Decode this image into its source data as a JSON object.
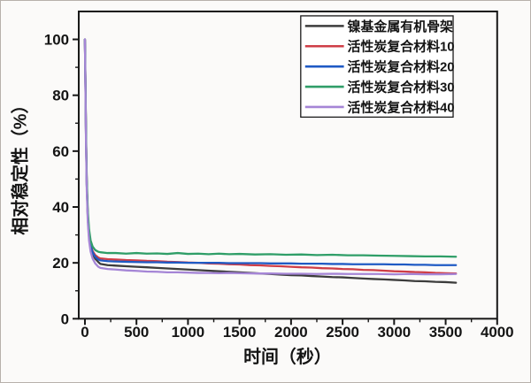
{
  "figure": {
    "background": "#fbfaf9",
    "border_color": "#b7b1ab",
    "axis_color": "#161616",
    "text_color": "#141414"
  },
  "chart_data": {
    "type": "line",
    "title": "",
    "xlabel": "时间（秒）",
    "ylabel": "相对稳定性（%）",
    "xlim": [
      -60,
      4000
    ],
    "ylim": [
      0,
      110
    ],
    "x_major_ticks": [
      0,
      500,
      1000,
      1500,
      2000,
      2500,
      3000,
      3500,
      4000
    ],
    "x_minor_ticks": [
      250,
      750,
      1250,
      1750,
      2250,
      2750,
      3250,
      3750
    ],
    "y_major_ticks": [
      0,
      20,
      40,
      60,
      80,
      100
    ],
    "y_minor_ticks": [
      10,
      30,
      50,
      70,
      90
    ],
    "grid": false,
    "legend_position": "top-right-inside",
    "series": [
      {
        "name": "镍基金属有机骨架",
        "color": "#3c3c3c",
        "points": [
          [
            0,
            100
          ],
          [
            5,
            84
          ],
          [
            10,
            66
          ],
          [
            18,
            48
          ],
          [
            28,
            36
          ],
          [
            40,
            29.5
          ],
          [
            55,
            25.5
          ],
          [
            75,
            23
          ],
          [
            100,
            21.5
          ],
          [
            130,
            20.3
          ],
          [
            150,
            19.6
          ],
          [
            220,
            19.2
          ],
          [
            300,
            19.0
          ],
          [
            400,
            18.8
          ],
          [
            500,
            18.6
          ],
          [
            600,
            18.4
          ],
          [
            700,
            18.2
          ],
          [
            800,
            18.0
          ],
          [
            900,
            17.8
          ],
          [
            1000,
            17.6
          ],
          [
            1100,
            17.4
          ],
          [
            1200,
            17.2
          ],
          [
            1300,
            17.0
          ],
          [
            1400,
            16.8
          ],
          [
            1500,
            16.6
          ],
          [
            1600,
            16.4
          ],
          [
            1700,
            16.2
          ],
          [
            1800,
            16.0
          ],
          [
            1900,
            15.8
          ],
          [
            2000,
            15.6
          ],
          [
            2100,
            15.5
          ],
          [
            2200,
            15.3
          ],
          [
            2300,
            15.1
          ],
          [
            2400,
            14.9
          ],
          [
            2500,
            14.8
          ],
          [
            2600,
            14.6
          ],
          [
            2700,
            14.4
          ],
          [
            2800,
            14.2
          ],
          [
            2900,
            14.1
          ],
          [
            3000,
            13.9
          ],
          [
            3100,
            13.7
          ],
          [
            3200,
            13.5
          ],
          [
            3300,
            13.4
          ],
          [
            3400,
            13.2
          ],
          [
            3500,
            13.1
          ],
          [
            3600,
            12.9
          ]
        ]
      },
      {
        "name": "活性炭复合材料10",
        "color": "#cf3e47",
        "points": [
          [
            0,
            100
          ],
          [
            5,
            85
          ],
          [
            10,
            67
          ],
          [
            18,
            49
          ],
          [
            28,
            37
          ],
          [
            40,
            30.5
          ],
          [
            55,
            26.5
          ],
          [
            75,
            24.2
          ],
          [
            100,
            22.8
          ],
          [
            130,
            21.9
          ],
          [
            150,
            21.6
          ],
          [
            220,
            21.3
          ],
          [
            300,
            21.2
          ],
          [
            400,
            21.0
          ],
          [
            500,
            20.9
          ],
          [
            600,
            20.7
          ],
          [
            700,
            20.6
          ],
          [
            800,
            20.4
          ],
          [
            900,
            20.3
          ],
          [
            1000,
            20.1
          ],
          [
            1100,
            20.0
          ],
          [
            1200,
            19.8
          ],
          [
            1300,
            19.7
          ],
          [
            1400,
            19.5
          ],
          [
            1500,
            19.4
          ],
          [
            1600,
            19.2
          ],
          [
            1700,
            19.1
          ],
          [
            1800,
            18.9
          ],
          [
            1900,
            18.8
          ],
          [
            2000,
            18.6
          ],
          [
            2100,
            18.4
          ],
          [
            2200,
            18.3
          ],
          [
            2300,
            18.1
          ],
          [
            2400,
            18.0
          ],
          [
            2500,
            17.8
          ],
          [
            2600,
            17.7
          ],
          [
            2700,
            17.5
          ],
          [
            2800,
            17.4
          ],
          [
            2900,
            17.2
          ],
          [
            3000,
            17.0
          ],
          [
            3100,
            16.9
          ],
          [
            3200,
            16.7
          ],
          [
            3300,
            16.6
          ],
          [
            3400,
            16.4
          ],
          [
            3500,
            16.3
          ],
          [
            3600,
            16.2
          ]
        ]
      },
      {
        "name": "活性炭复合材料20",
        "color": "#1f5ac4",
        "points": [
          [
            0,
            100
          ],
          [
            5,
            84
          ],
          [
            10,
            66
          ],
          [
            18,
            48
          ],
          [
            28,
            36.5
          ],
          [
            40,
            30
          ],
          [
            55,
            26
          ],
          [
            75,
            23.7
          ],
          [
            100,
            22.2
          ],
          [
            130,
            21.2
          ],
          [
            150,
            20.9
          ],
          [
            220,
            20.6
          ],
          [
            300,
            20.5
          ],
          [
            400,
            20.4
          ],
          [
            500,
            20.3
          ],
          [
            600,
            20.2
          ],
          [
            700,
            20.2
          ],
          [
            800,
            20.1
          ],
          [
            900,
            20.1
          ],
          [
            1000,
            20.0
          ],
          [
            1100,
            20.0
          ],
          [
            1200,
            20.0
          ],
          [
            1300,
            20.0
          ],
          [
            1400,
            19.9
          ],
          [
            1500,
            19.9
          ],
          [
            1600,
            19.9
          ],
          [
            1700,
            19.9
          ],
          [
            1800,
            19.8
          ],
          [
            1900,
            19.8
          ],
          [
            2000,
            19.8
          ],
          [
            2100,
            19.7
          ],
          [
            2200,
            19.7
          ],
          [
            2300,
            19.7
          ],
          [
            2400,
            19.6
          ],
          [
            2500,
            19.6
          ],
          [
            2600,
            19.5
          ],
          [
            2700,
            19.5
          ],
          [
            2800,
            19.5
          ],
          [
            2900,
            19.5
          ],
          [
            3000,
            19.4
          ],
          [
            3100,
            19.4
          ],
          [
            3200,
            19.3
          ],
          [
            3300,
            19.3
          ],
          [
            3400,
            19.2
          ],
          [
            3500,
            19.2
          ],
          [
            3600,
            19.2
          ]
        ]
      },
      {
        "name": "活性炭复合材料30",
        "color": "#2f9e68",
        "points": [
          [
            0,
            100
          ],
          [
            5,
            86
          ],
          [
            10,
            68
          ],
          [
            18,
            50
          ],
          [
            28,
            38.5
          ],
          [
            40,
            32
          ],
          [
            55,
            28
          ],
          [
            75,
            25.8
          ],
          [
            100,
            24.6
          ],
          [
            130,
            24.0
          ],
          [
            150,
            23.8
          ],
          [
            220,
            23.5
          ],
          [
            300,
            23.5
          ],
          [
            400,
            23.3
          ],
          [
            500,
            23.5
          ],
          [
            600,
            23.3
          ],
          [
            700,
            23.4
          ],
          [
            800,
            23.2
          ],
          [
            900,
            23.5
          ],
          [
            1000,
            23.2
          ],
          [
            1100,
            23.3
          ],
          [
            1200,
            23.1
          ],
          [
            1300,
            23.3
          ],
          [
            1400,
            23.1
          ],
          [
            1500,
            23.2
          ],
          [
            1650,
            23.0
          ],
          [
            1800,
            23.1
          ],
          [
            1950,
            22.9
          ],
          [
            2100,
            23.0
          ],
          [
            2250,
            22.8
          ],
          [
            2400,
            22.9
          ],
          [
            2550,
            22.7
          ],
          [
            2700,
            22.7
          ],
          [
            2850,
            22.6
          ],
          [
            3000,
            22.5
          ],
          [
            3150,
            22.4
          ],
          [
            3300,
            22.3
          ],
          [
            3450,
            22.3
          ],
          [
            3600,
            22.2
          ]
        ]
      },
      {
        "name": "活性炭复合材料40",
        "color": "#a585d6",
        "points": [
          [
            0,
            100
          ],
          [
            5,
            83
          ],
          [
            10,
            64
          ],
          [
            18,
            46
          ],
          [
            28,
            34.5
          ],
          [
            40,
            28
          ],
          [
            55,
            24
          ],
          [
            75,
            21.5
          ],
          [
            100,
            19.8
          ],
          [
            130,
            18.6
          ],
          [
            150,
            18.2
          ],
          [
            220,
            17.8
          ],
          [
            300,
            17.6
          ],
          [
            400,
            17.3
          ],
          [
            500,
            17.1
          ],
          [
            600,
            16.9
          ],
          [
            700,
            16.8
          ],
          [
            800,
            16.6
          ],
          [
            900,
            16.6
          ],
          [
            1000,
            16.5
          ],
          [
            1100,
            16.4
          ],
          [
            1200,
            16.4
          ],
          [
            1300,
            16.3
          ],
          [
            1400,
            16.4
          ],
          [
            1500,
            16.3
          ],
          [
            1650,
            16.2
          ],
          [
            1800,
            16.2
          ],
          [
            1950,
            16.1
          ],
          [
            2100,
            16.1
          ],
          [
            2250,
            16.0
          ],
          [
            2400,
            16.1
          ],
          [
            2550,
            16.0
          ],
          [
            2700,
            16.0
          ],
          [
            2850,
            16.0
          ],
          [
            3000,
            15.9
          ],
          [
            3150,
            16.0
          ],
          [
            3300,
            15.9
          ],
          [
            3450,
            15.9
          ],
          [
            3600,
            16.0
          ]
        ]
      }
    ]
  }
}
